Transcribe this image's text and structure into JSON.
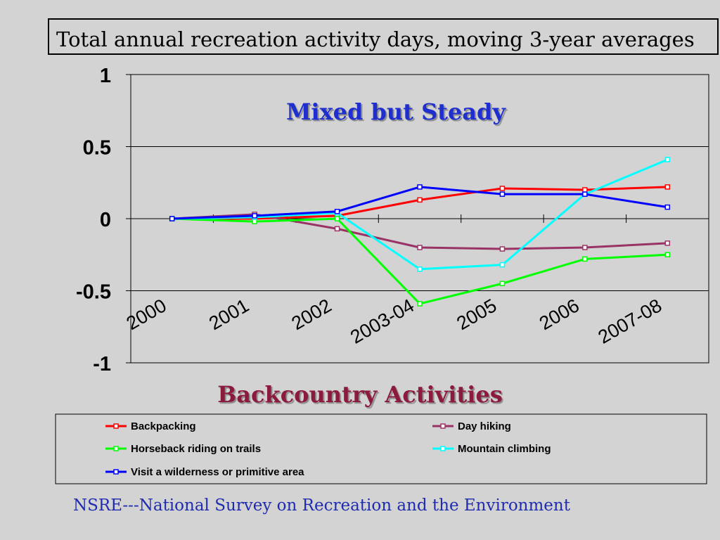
{
  "slide": {
    "title": "Total annual recreation activity days, moving 3-year averages",
    "footer": "NSRE---National Survey on Recreation and the Environment"
  },
  "colors": {
    "background": "#d3d3d3",
    "plot_area": "#d3d3d3",
    "subtitle": "#1f2ecf",
    "xlabel": "#8b1a3c",
    "footer": "#1f2cb0"
  },
  "chart_data": {
    "type": "line",
    "subtitle": "Mixed but Steady",
    "xlabel": "Backcountry Activities",
    "ylabel": "",
    "categories": [
      "2000",
      "2001",
      "2002",
      "2003-04",
      "2005",
      "2006",
      "2007-08"
    ],
    "ylim": [
      -1,
      1
    ],
    "yticks": [
      -1,
      -0.5,
      0,
      0.5,
      1
    ],
    "ytick_labels": [
      "-1",
      "-0.5",
      "0",
      "0.5",
      "1"
    ],
    "grid": true,
    "legend_position": "bottom",
    "series": [
      {
        "name": "Backpacking",
        "color": "#ff0000",
        "values": [
          0,
          0,
          0.02,
          0.13,
          0.21,
          0.2,
          0.22
        ]
      },
      {
        "name": "Day hiking",
        "color": "#993366",
        "values": [
          0,
          0.03,
          -0.07,
          -0.2,
          -0.21,
          -0.2,
          -0.17
        ]
      },
      {
        "name": "Horseback riding on trails",
        "color": "#00ff00",
        "values": [
          0,
          -0.02,
          0,
          -0.59,
          -0.45,
          -0.28,
          -0.25
        ]
      },
      {
        "name": "Mountain climbing",
        "color": "#00ffff",
        "values": [
          0,
          0.01,
          0.04,
          -0.35,
          -0.32,
          0.17,
          0.41
        ]
      },
      {
        "name": "Visit a wilderness or primitive area",
        "color": "#0000ff",
        "values": [
          0,
          0.02,
          0.05,
          0.22,
          0.17,
          0.17,
          0.08
        ]
      }
    ]
  }
}
